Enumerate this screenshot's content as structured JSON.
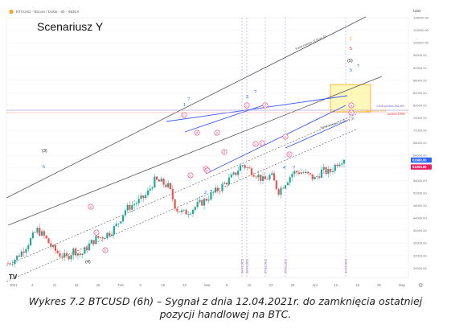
{
  "header": {
    "symbol_line": "BTCUSD · Bitcoin / Dollar · 6h · INDEX",
    "currency": "USD",
    "scenario_title": "Scenariusz Y"
  },
  "chart_data": {
    "type": "candlestick",
    "title": "Scenariusz Y",
    "ylim": [
      25000,
      108000
    ],
    "y_tick_labels": [
      "108000.00",
      "104000.00",
      "100000.00",
      "96000.00",
      "92000.00",
      "88000.00",
      "84000.00",
      "80000.00",
      "76000.00",
      "72000.00",
      "68000.00",
      "64000.00",
      "60000.00",
      "56000.00",
      "52000.00",
      "48000.00",
      "44000.00",
      "40000.00",
      "36000.00",
      "32000.00",
      "28000.00"
    ],
    "x_tick_labels": [
      "2021",
      "4",
      "11",
      "18",
      "25",
      "Feb",
      "8",
      "15",
      "22",
      "Mar",
      "8",
      "15",
      "22",
      "29",
      "Apr",
      "12",
      "19",
      "26",
      "May"
    ],
    "price_markers": [
      {
        "value": "61680.00",
        "color": "#2962ff"
      },
      {
        "value": "61000.00",
        "color": "#e91e63"
      }
    ],
    "candles_close_path": [
      29500,
      31000,
      33500,
      36800,
      40200,
      38000,
      34500,
      32500,
      31200,
      33800,
      32100,
      35200,
      37400,
      38200,
      39500,
      42100,
      46500,
      48200,
      49500,
      51500,
      56000,
      55400,
      54000,
      47000,
      45500,
      46500,
      48200,
      49800,
      51800,
      53500,
      55800,
      57800,
      61200,
      59500,
      58000,
      55800,
      57800,
      52500,
      55500,
      58500,
      58800,
      57800,
      56500,
      59200,
      58500,
      61500,
      63200
    ],
    "channel_labels": [
      {
        "text": "Kanał zawsze 12 (l) y1 (2)"
      },
      {
        "text": "Kanał zawsze 12 (4) wy (3)"
      }
    ],
    "fib_labels": [
      {
        "text": "1.618 poziom 261.8%"
      },
      {
        "text": "poziom 100%"
      },
      {
        "text": "(6) poziom 95%"
      }
    ],
    "wave_labels": [
      {
        "text": "(3)",
        "color": "#222222"
      },
      {
        "text": "5",
        "color": "#2962ff"
      },
      {
        "text": "(4)",
        "color": "#222222"
      },
      {
        "text": "1",
        "color": "#2962ff"
      },
      {
        "text": "?",
        "color": "#2962ff"
      },
      {
        "text": "3",
        "color": "#2962ff"
      },
      {
        "text": "?",
        "color": "#2962ff"
      },
      {
        "text": "2",
        "color": "#2962ff"
      },
      {
        "text": "?",
        "color": "#2962ff"
      },
      {
        "text": "4",
        "color": "#2962ff"
      },
      {
        "text": "?",
        "color": "#2962ff"
      },
      {
        "text": "(5)",
        "color": "#222222"
      },
      {
        "text": "5",
        "color": "#2962ff"
      },
      {
        "text": "?",
        "color": "#2962ff"
      },
      {
        "text": "1",
        "color": "#f5a623"
      },
      {
        "text": "5",
        "color": "#e53935"
      }
    ],
    "circle_labels": [
      "a",
      "b",
      "c",
      "d",
      "e",
      "a",
      "b",
      "c",
      "d",
      "e",
      "a",
      "b",
      "c",
      "d",
      "e",
      "a",
      "b",
      "c"
    ],
    "vline_dates": [
      "18.03.2021",
      "18.03.2021",
      "25.03.2021",
      "25.03.2021",
      "12.04.2021"
    ],
    "colors": {
      "candle_up": "#26a69a",
      "candle_down": "#ef5350",
      "channel": "#555555",
      "trendline": "#3d5afe",
      "target_box": "#fff59d",
      "target_box_border": "#f5a623",
      "vline": "#b39ddb",
      "circle": "#ec407a"
    }
  },
  "caption": {
    "line1": "Wykres 7.2 BTCUSD (6h) – Sygnał z dnia 12.04.2021r. do zamknięcia ostatniej",
    "line2": "pozycji handlowej na BTC."
  }
}
